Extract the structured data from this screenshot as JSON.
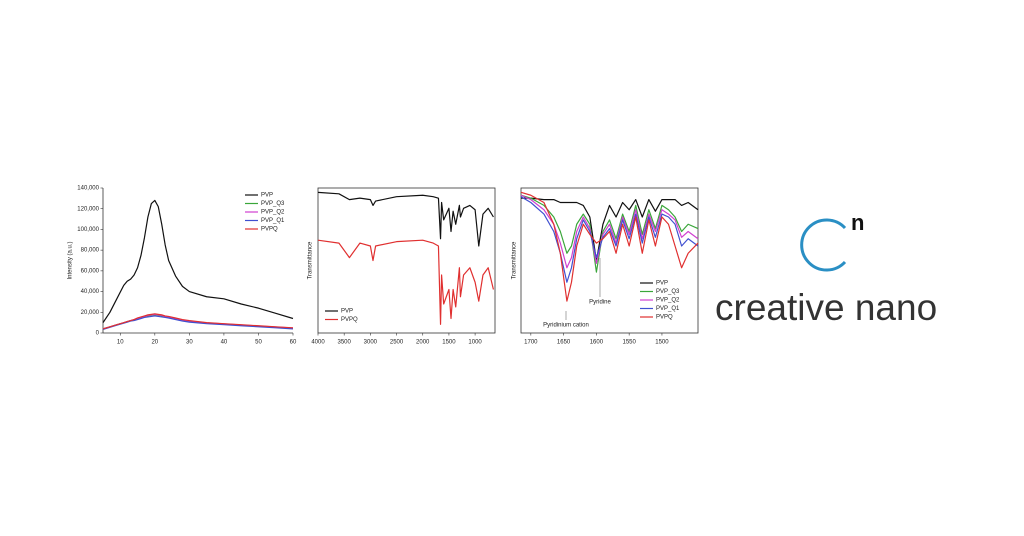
{
  "chart_data": [
    {
      "type": "line",
      "y_label": "Intensity (a.u.)",
      "x": [
        5,
        7,
        9,
        11,
        12,
        13,
        14,
        15,
        16,
        17,
        18,
        19,
        20,
        21,
        22,
        23,
        24,
        26,
        28,
        30,
        35,
        40,
        45,
        50,
        55,
        60
      ],
      "xlim": [
        5,
        60
      ],
      "xticks": [
        10,
        20,
        30,
        40,
        50,
        60
      ],
      "ylim": [
        0,
        140000
      ],
      "yticks": [
        0,
        {
          "value": 20000,
          "label": "20,000"
        },
        {
          "value": 40000,
          "label": "40,000"
        },
        {
          "value": 60000,
          "label": "60,000"
        },
        {
          "value": 80000,
          "label": "80,000"
        },
        {
          "value": 100000,
          "label": "100,000"
        },
        {
          "value": 120000,
          "label": "120,000"
        },
        {
          "value": 140000,
          "label": "140,000"
        }
      ],
      "series": [
        {
          "name": "PVP",
          "color": "#111111",
          "values": [
            10000,
            20000,
            33000,
            46000,
            50000,
            52000,
            56000,
            63000,
            75000,
            92000,
            112000,
            125000,
            128000,
            122000,
            105000,
            85000,
            70000,
            55000,
            45000,
            40000,
            35000,
            33000,
            28000,
            24000,
            19000,
            14000
          ]
        },
        {
          "name": "PVP_Q3",
          "color": "#3aa63a",
          "values": [
            4000,
            6000,
            8000,
            10000,
            11000,
            12000,
            12500,
            13500,
            14500,
            15500,
            16500,
            17000,
            17500,
            17000,
            16500,
            15500,
            15000,
            13500,
            12000,
            11000,
            9500,
            8500,
            7500,
            6500,
            5500,
            4500
          ]
        },
        {
          "name": "PVP_Q2",
          "color": "#d040d0",
          "values": [
            4000,
            6000,
            8000,
            10000,
            11000,
            12000,
            13000,
            14000,
            15000,
            16000,
            17000,
            17500,
            18000,
            17500,
            17000,
            16000,
            15500,
            14000,
            12500,
            11500,
            9800,
            8800,
            7800,
            6800,
            5800,
            4800
          ]
        },
        {
          "name": "PVP_Q1",
          "color": "#4050d0",
          "values": [
            3500,
            5500,
            7500,
            9500,
            10500,
            11500,
            12000,
            13000,
            14000,
            15000,
            15500,
            16000,
            16500,
            16000,
            15500,
            15000,
            14500,
            13000,
            11500,
            10500,
            9000,
            8000,
            7000,
            6000,
            5000,
            4000
          ]
        },
        {
          "name": "PVPQ",
          "color": "#e03030",
          "values": [
            4000,
            6000,
            8000,
            10000,
            11000,
            12000,
            13000,
            14500,
            15500,
            16500,
            17500,
            18000,
            18500,
            18000,
            17500,
            16500,
            16000,
            14500,
            13000,
            12000,
            10000,
            9000,
            8000,
            7000,
            6000,
            5000
          ]
        }
      ]
    },
    {
      "type": "line",
      "y_label": "Transmittance",
      "x": [
        4000,
        3600,
        3400,
        3200,
        3000,
        2950,
        2900,
        2500,
        2000,
        1800,
        1700,
        1660,
        1640,
        1600,
        1500,
        1460,
        1420,
        1370,
        1300,
        1280,
        1220,
        1100,
        1000,
        930,
        850,
        750,
        650
      ],
      "xlim": [
        4000,
        620
      ],
      "xticks": [
        4000,
        3500,
        3000,
        2500,
        2000,
        1500,
        1000
      ],
      "ylim": [
        0,
        100
      ],
      "series": [
        {
          "name": "PVP",
          "color": "#111111",
          "values": [
            97,
            96,
            92,
            93,
            92,
            88,
            91,
            94,
            95,
            94,
            93,
            65,
            90,
            78,
            86,
            70,
            84,
            75,
            88,
            80,
            86,
            88,
            85,
            60,
            82,
            86,
            80
          ]
        },
        {
          "name": "PVPQ",
          "color": "#e03030",
          "values": [
            64,
            62,
            52,
            62,
            60,
            50,
            60,
            63,
            64,
            62,
            60,
            6,
            40,
            20,
            30,
            10,
            30,
            18,
            45,
            25,
            40,
            45,
            35,
            22,
            40,
            45,
            30
          ]
        }
      ]
    },
    {
      "type": "line",
      "y_label": "Transmittance",
      "annotations": [
        "Pyridinium cation",
        "Pyridine"
      ],
      "x": [
        1715,
        1700,
        1680,
        1665,
        1655,
        1645,
        1638,
        1630,
        1620,
        1610,
        1600,
        1590,
        1580,
        1570,
        1560,
        1550,
        1540,
        1530,
        1520,
        1510,
        1500,
        1490,
        1480,
        1470,
        1460,
        1445
      ],
      "xlim": [
        1715,
        1445
      ],
      "xticks": [
        1700,
        1650,
        1600,
        1550,
        1500
      ],
      "ylim": [
        0,
        100
      ],
      "series": [
        {
          "name": "PVP",
          "color": "#111111",
          "values": [
            93,
            93,
            92,
            92,
            90,
            90,
            90,
            90,
            88,
            80,
            50,
            75,
            88,
            80,
            90,
            85,
            92,
            80,
            92,
            84,
            92,
            92,
            92,
            88,
            90,
            85
          ]
        },
        {
          "name": "PVP_Q3",
          "color": "#3aa63a",
          "values": [
            95,
            93,
            88,
            80,
            70,
            55,
            60,
            75,
            82,
            75,
            42,
            70,
            78,
            65,
            82,
            70,
            88,
            68,
            85,
            72,
            88,
            85,
            80,
            70,
            75,
            72
          ]
        },
        {
          "name": "PVP_Q2",
          "color": "#d040d0",
          "values": [
            95,
            92,
            85,
            75,
            62,
            45,
            52,
            70,
            80,
            72,
            48,
            68,
            75,
            62,
            80,
            68,
            85,
            65,
            82,
            70,
            85,
            82,
            78,
            66,
            70,
            65
          ]
        },
        {
          "name": "PVP_Q1",
          "color": "#4050d0",
          "values": [
            94,
            90,
            82,
            70,
            55,
            35,
            45,
            65,
            78,
            70,
            52,
            66,
            72,
            60,
            78,
            65,
            82,
            62,
            80,
            66,
            82,
            80,
            75,
            60,
            65,
            60
          ]
        },
        {
          "name": "PVPQ",
          "color": "#e03030",
          "values": [
            97,
            95,
            90,
            75,
            55,
            22,
            35,
            60,
            75,
            68,
            62,
            65,
            70,
            55,
            75,
            60,
            80,
            55,
            78,
            60,
            80,
            75,
            60,
            45,
            55,
            62
          ]
        }
      ]
    }
  ],
  "logo": {
    "superscript": "n",
    "wordmark": "creative nano"
  }
}
